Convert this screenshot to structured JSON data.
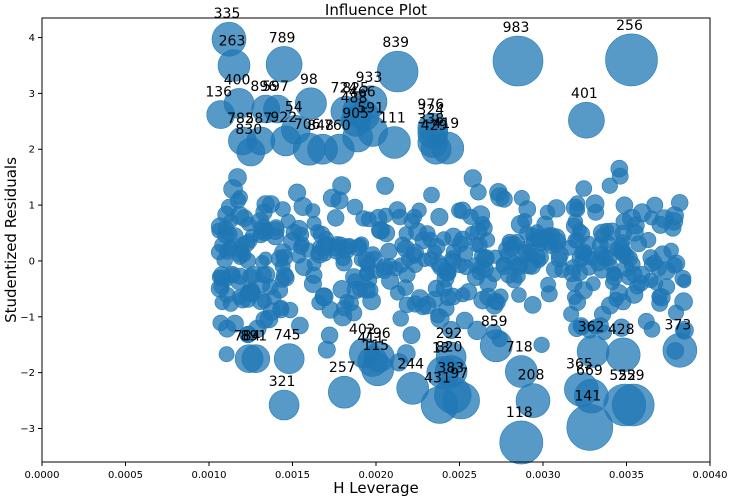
{
  "chart_data": {
    "type": "scatter",
    "title": "Influence Plot",
    "xlabel": "H Leverage",
    "ylabel": "Studentized Residuals",
    "xlim": [
      0.0,
      0.004
    ],
    "ylim": [
      -3.6,
      4.35
    ],
    "x_ticks": [
      "0.0000",
      "0.0005",
      "0.0010",
      "0.0015",
      "0.0020",
      "0.0025",
      "0.0030",
      "0.0035",
      "0.0040"
    ],
    "y_ticks": [
      "−3",
      "−2",
      "−1",
      "0",
      "1",
      "2",
      "3",
      "4"
    ],
    "x_tick_values": [
      0.0,
      0.0005,
      0.001,
      0.0015,
      0.002,
      0.0025,
      0.003,
      0.0035,
      0.004
    ],
    "y_tick_values": [
      -3,
      -2,
      -1,
      0,
      1,
      2,
      3,
      4
    ],
    "grid": false,
    "marker_color": "#1f77b4",
    "size_meaning": "Cook's distance (bubble area)",
    "annotated_points": [
      {
        "label": "335",
        "x": 0.00112,
        "y": 3.97,
        "size": 0.55
      },
      {
        "label": "263",
        "x": 0.00115,
        "y": 3.5,
        "size": 0.5
      },
      {
        "label": "789",
        "x": 0.00145,
        "y": 3.52,
        "size": 0.6
      },
      {
        "label": "839",
        "x": 0.00213,
        "y": 3.39,
        "size": 0.72
      },
      {
        "label": "983",
        "x": 0.00285,
        "y": 3.58,
        "size": 0.95
      },
      {
        "label": "256",
        "x": 0.00353,
        "y": 3.6,
        "size": 1.0
      },
      {
        "label": "400",
        "x": 0.00118,
        "y": 2.82,
        "size": 0.45
      },
      {
        "label": "896",
        "x": 0.00134,
        "y": 2.72,
        "size": 0.4
      },
      {
        "label": "597",
        "x": 0.00141,
        "y": 2.72,
        "size": 0.4
      },
      {
        "label": "98",
        "x": 0.00161,
        "y": 2.82,
        "size": 0.48
      },
      {
        "label": "933",
        "x": 0.00197,
        "y": 2.85,
        "size": 0.5
      },
      {
        "label": "724",
        "x": 0.00182,
        "y": 2.68,
        "size": 0.45
      },
      {
        "label": "825",
        "x": 0.00189,
        "y": 2.68,
        "size": 0.45
      },
      {
        "label": "466",
        "x": 0.00193,
        "y": 2.6,
        "size": 0.45
      },
      {
        "label": "488",
        "x": 0.00188,
        "y": 2.5,
        "size": 0.45
      },
      {
        "label": "136",
        "x": 0.00107,
        "y": 2.62,
        "size": 0.4
      },
      {
        "label": "401",
        "x": 0.00326,
        "y": 2.52,
        "size": 0.6
      },
      {
        "label": "976",
        "x": 0.00234,
        "y": 2.38,
        "size": 0.45
      },
      {
        "label": "324",
        "x": 0.00234,
        "y": 2.28,
        "size": 0.45
      },
      {
        "label": "54",
        "x": 0.00152,
        "y": 2.35,
        "size": 0.42
      },
      {
        "label": "591",
        "x": 0.00198,
        "y": 2.32,
        "size": 0.45
      },
      {
        "label": "905",
        "x": 0.00189,
        "y": 2.22,
        "size": 0.45
      },
      {
        "label": "111",
        "x": 0.00211,
        "y": 2.12,
        "size": 0.5
      },
      {
        "label": "338",
        "x": 0.00234,
        "y": 2.12,
        "size": 0.45
      },
      {
        "label": "419",
        "x": 0.00243,
        "y": 2.02,
        "size": 0.5
      },
      {
        "label": "429",
        "x": 0.00236,
        "y": 2.0,
        "size": 0.45
      },
      {
        "label": "922",
        "x": 0.00146,
        "y": 2.15,
        "size": 0.45
      },
      {
        "label": "706",
        "x": 0.0016,
        "y": 2.0,
        "size": 0.5
      },
      {
        "label": "848",
        "x": 0.00168,
        "y": 2.0,
        "size": 0.45
      },
      {
        "label": "760",
        "x": 0.00178,
        "y": 2.0,
        "size": 0.45
      },
      {
        "label": "782",
        "x": 0.0012,
        "y": 2.15,
        "size": 0.4
      },
      {
        "label": "587",
        "x": 0.00131,
        "y": 2.15,
        "size": 0.4
      },
      {
        "label": "830",
        "x": 0.00125,
        "y": 1.95,
        "size": 0.4
      },
      {
        "label": "784",
        "x": 0.00124,
        "y": -1.75,
        "size": 0.4
      },
      {
        "label": "891",
        "x": 0.00128,
        "y": -1.75,
        "size": 0.4
      },
      {
        "label": "745",
        "x": 0.00148,
        "y": -1.75,
        "size": 0.45
      },
      {
        "label": "321",
        "x": 0.00145,
        "y": -2.58,
        "size": 0.45
      },
      {
        "label": "257",
        "x": 0.00181,
        "y": -2.35,
        "size": 0.5
      },
      {
        "label": "402",
        "x": 0.00193,
        "y": -1.65,
        "size": 0.45
      },
      {
        "label": "411",
        "x": 0.00198,
        "y": -1.8,
        "size": 0.45
      },
      {
        "label": "796",
        "x": 0.00202,
        "y": -1.72,
        "size": 0.45
      },
      {
        "label": "115",
        "x": 0.00201,
        "y": -1.95,
        "size": 0.5
      },
      {
        "label": "244",
        "x": 0.00222,
        "y": -2.28,
        "size": 0.5
      },
      {
        "label": "13",
        "x": 0.0024,
        "y": -2.0,
        "size": 0.5
      },
      {
        "label": "431",
        "x": 0.00238,
        "y": -2.58,
        "size": 0.62
      },
      {
        "label": "383",
        "x": 0.00246,
        "y": -2.4,
        "size": 0.62
      },
      {
        "label": "97",
        "x": 0.00251,
        "y": -2.5,
        "size": 0.62
      },
      {
        "label": "292",
        "x": 0.00245,
        "y": -1.72,
        "size": 0.45
      },
      {
        "label": "820",
        "x": 0.00245,
        "y": -1.98,
        "size": 0.5
      },
      {
        "label": "859",
        "x": 0.00272,
        "y": -1.52,
        "size": 0.5
      },
      {
        "label": "718",
        "x": 0.00287,
        "y": -1.98,
        "size": 0.5
      },
      {
        "label": "208",
        "x": 0.00294,
        "y": -2.5,
        "size": 0.55
      },
      {
        "label": "118",
        "x": 0.00287,
        "y": -3.25,
        "size": 0.78
      },
      {
        "label": "362",
        "x": 0.0033,
        "y": -1.62,
        "size": 0.5
      },
      {
        "label": "365",
        "x": 0.00323,
        "y": -2.3,
        "size": 0.55
      },
      {
        "label": "669",
        "x": 0.00329,
        "y": -2.42,
        "size": 0.55
      },
      {
        "label": "141",
        "x": 0.00328,
        "y": -2.98,
        "size": 0.85
      },
      {
        "label": "428",
        "x": 0.00348,
        "y": -1.68,
        "size": 0.55
      },
      {
        "label": "552",
        "x": 0.00349,
        "y": -2.58,
        "size": 0.75
      },
      {
        "label": "259",
        "x": 0.00354,
        "y": -2.58,
        "size": 0.75
      },
      {
        "label": "373",
        "x": 0.00382,
        "y": -1.6,
        "size": 0.55
      }
    ],
    "generated_cloud": {
      "seed": 7,
      "count": 460,
      "x_range": [
        0.00106,
        0.00386
      ],
      "y_range": [
        -2.0,
        1.85
      ]
    }
  }
}
